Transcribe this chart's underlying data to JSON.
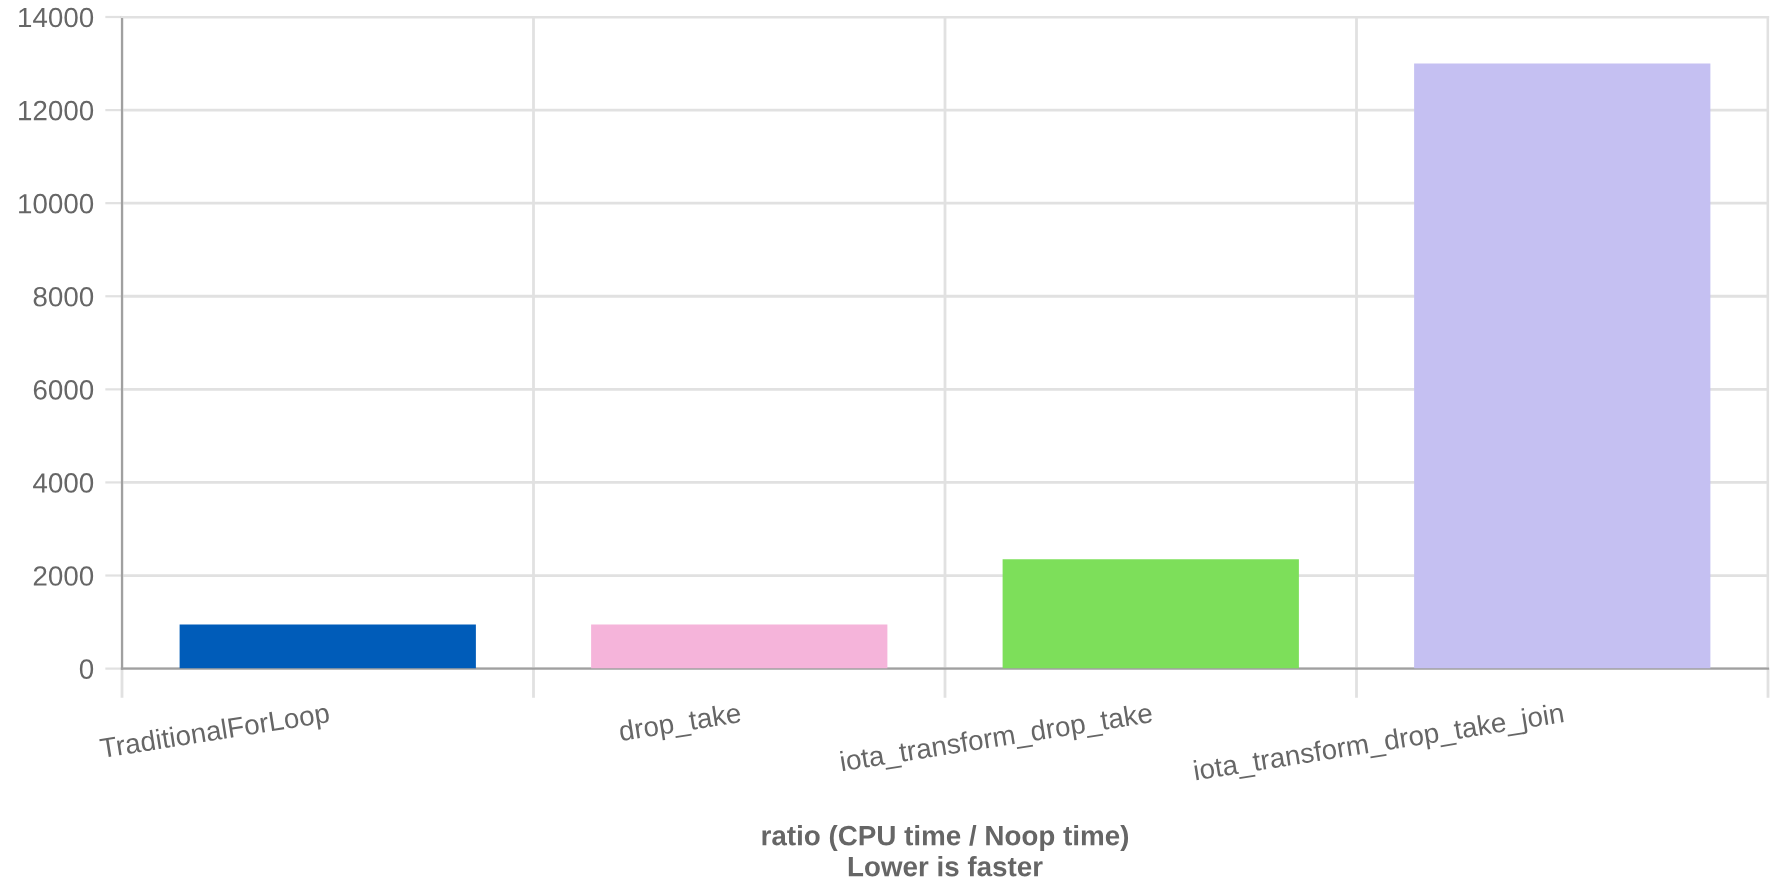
{
  "chart_data": {
    "type": "bar",
    "categories": [
      "TraditionalForLoop",
      "drop_take",
      "iota_transform_drop_take",
      "iota_transform_drop_take_join"
    ],
    "values": [
      950,
      950,
      2350,
      13000
    ],
    "colors": [
      "#005cb9",
      "#f5b4da",
      "#7ddf5a",
      "#c5c0f2"
    ],
    "xlabel": "ratio (CPU time / Noop time)\nLower is faster",
    "ylim": [
      0,
      14000
    ],
    "yticks": [
      0,
      2000,
      4000,
      6000,
      8000,
      10000,
      12000,
      14000
    ],
    "grid": true
  }
}
